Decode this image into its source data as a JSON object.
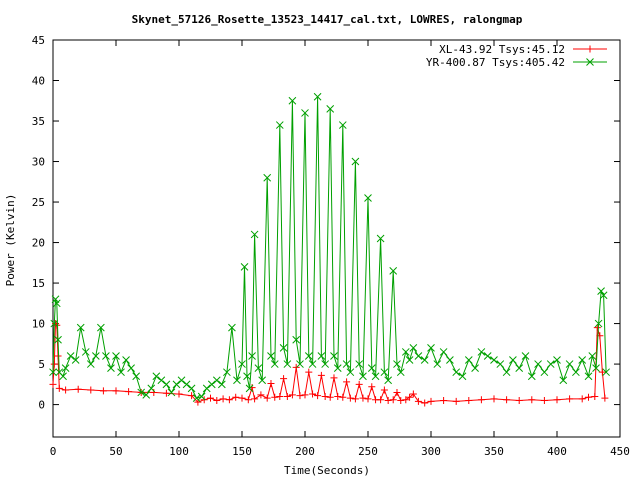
{
  "chart_data": {
    "type": "line",
    "title": "Skynet_57126_Rosette_13523_14417_cal.txt, LOWRES, ralongmap",
    "xlabel": "Time(Seconds)",
    "ylabel": "Power (Kelvin)",
    "xlim": [
      0,
      450
    ],
    "ylim": [
      -4,
      45
    ],
    "xticks": [
      0,
      50,
      100,
      150,
      200,
      250,
      300,
      350,
      400,
      450
    ],
    "yticks": [
      0,
      5,
      10,
      15,
      20,
      25,
      30,
      35,
      40,
      45
    ],
    "grid": false,
    "legend_position": "top-right",
    "series": [
      {
        "name": "XL-43.92 Tsys:45.12",
        "color": "#ff0000",
        "marker": "plus",
        "x": [
          0,
          1,
          2,
          3,
          4,
          5,
          10,
          20,
          30,
          40,
          50,
          60,
          70,
          80,
          90,
          100,
          110,
          115,
          120,
          125,
          130,
          135,
          140,
          145,
          150,
          155,
          158,
          160,
          165,
          170,
          173,
          176,
          180,
          183,
          186,
          190,
          193,
          196,
          200,
          203,
          206,
          210,
          213,
          216,
          220,
          223,
          226,
          230,
          233,
          236,
          240,
          243,
          246,
          250,
          253,
          256,
          260,
          263,
          266,
          270,
          273,
          276,
          280,
          283,
          286,
          290,
          295,
          300,
          310,
          320,
          330,
          340,
          350,
          360,
          370,
          380,
          390,
          400,
          410,
          420,
          425,
          430,
          432,
          434,
          436,
          438
        ],
        "y": [
          2.5,
          5,
          10,
          9.8,
          6,
          2,
          1.8,
          1.9,
          1.8,
          1.7,
          1.7,
          1.6,
          1.5,
          1.5,
          1.4,
          1.3,
          1.1,
          0.3,
          0.6,
          0.8,
          0.5,
          0.7,
          0.6,
          0.9,
          0.8,
          0.6,
          2.1,
          0.7,
          1.2,
          0.8,
          2.6,
          0.9,
          1,
          3.2,
          1,
          1.2,
          4.6,
          1.1,
          1.2,
          4,
          1.3,
          1.1,
          3.6,
          1,
          0.9,
          3.3,
          1,
          0.9,
          2.8,
          0.8,
          0.7,
          2.5,
          0.8,
          0.7,
          2.2,
          0.6,
          0.6,
          1.8,
          0.5,
          0.6,
          1.5,
          0.5,
          0.6,
          0.9,
          1.3,
          0.4,
          0.2,
          0.4,
          0.5,
          0.4,
          0.5,
          0.6,
          0.7,
          0.6,
          0.5,
          0.6,
          0.5,
          0.6,
          0.7,
          0.7,
          0.9,
          1,
          9.5,
          8.5,
          4,
          0.8
        ]
      },
      {
        "name": "YR-400.87 Tsys:405.42",
        "color": "#00a000",
        "marker": "x",
        "x": [
          0,
          1,
          2,
          3,
          4,
          5,
          8,
          10,
          14,
          18,
          22,
          26,
          30,
          34,
          38,
          42,
          46,
          50,
          54,
          58,
          62,
          66,
          70,
          74,
          78,
          82,
          86,
          90,
          94,
          98,
          102,
          106,
          110,
          114,
          118,
          122,
          126,
          130,
          134,
          138,
          142,
          146,
          150,
          152,
          154,
          156,
          158,
          160,
          163,
          166,
          170,
          173,
          176,
          180,
          183,
          186,
          190,
          193,
          196,
          200,
          203,
          206,
          210,
          213,
          216,
          220,
          223,
          226,
          230,
          233,
          236,
          240,
          243,
          246,
          250,
          253,
          256,
          260,
          263,
          266,
          270,
          273,
          276,
          280,
          283,
          286,
          290,
          295,
          300,
          305,
          310,
          315,
          320,
          325,
          330,
          335,
          340,
          345,
          350,
          355,
          360,
          365,
          370,
          375,
          380,
          385,
          390,
          395,
          400,
          405,
          410,
          415,
          420,
          425,
          428,
          431,
          433,
          435,
          437,
          439
        ],
        "y": [
          4,
          10,
          13,
          12.5,
          8,
          4,
          3.5,
          4.5,
          6,
          5.5,
          9.5,
          6.5,
          5,
          6,
          9.5,
          6,
          4.5,
          6,
          4,
          5.5,
          4.5,
          3.5,
          1.5,
          1.2,
          2,
          3.5,
          3,
          2.5,
          1.5,
          2.5,
          3,
          2.5,
          2,
          0.8,
          1,
          2,
          2.5,
          3,
          2.5,
          4,
          9.5,
          3,
          5,
          17,
          3.5,
          2,
          6,
          21,
          4.5,
          3,
          28,
          6,
          5,
          34.5,
          7,
          5,
          37.5,
          8,
          5,
          36,
          6,
          5,
          38,
          6,
          5,
          36.5,
          6,
          4.5,
          34.5,
          5,
          4,
          30,
          5,
          3.5,
          25.5,
          4.5,
          3.5,
          20.5,
          4,
          3,
          16.5,
          5,
          4,
          6.5,
          5.5,
          7,
          6,
          5.5,
          7,
          5,
          6.5,
          5.5,
          4,
          3.5,
          5.5,
          4.5,
          6.5,
          6,
          5.5,
          5,
          4,
          5.5,
          4.5,
          6,
          3.5,
          5,
          4,
          5,
          5.5,
          3,
          5,
          4,
          5.5,
          3.5,
          6,
          4.5,
          10,
          14,
          13.5,
          4
        ]
      }
    ]
  }
}
